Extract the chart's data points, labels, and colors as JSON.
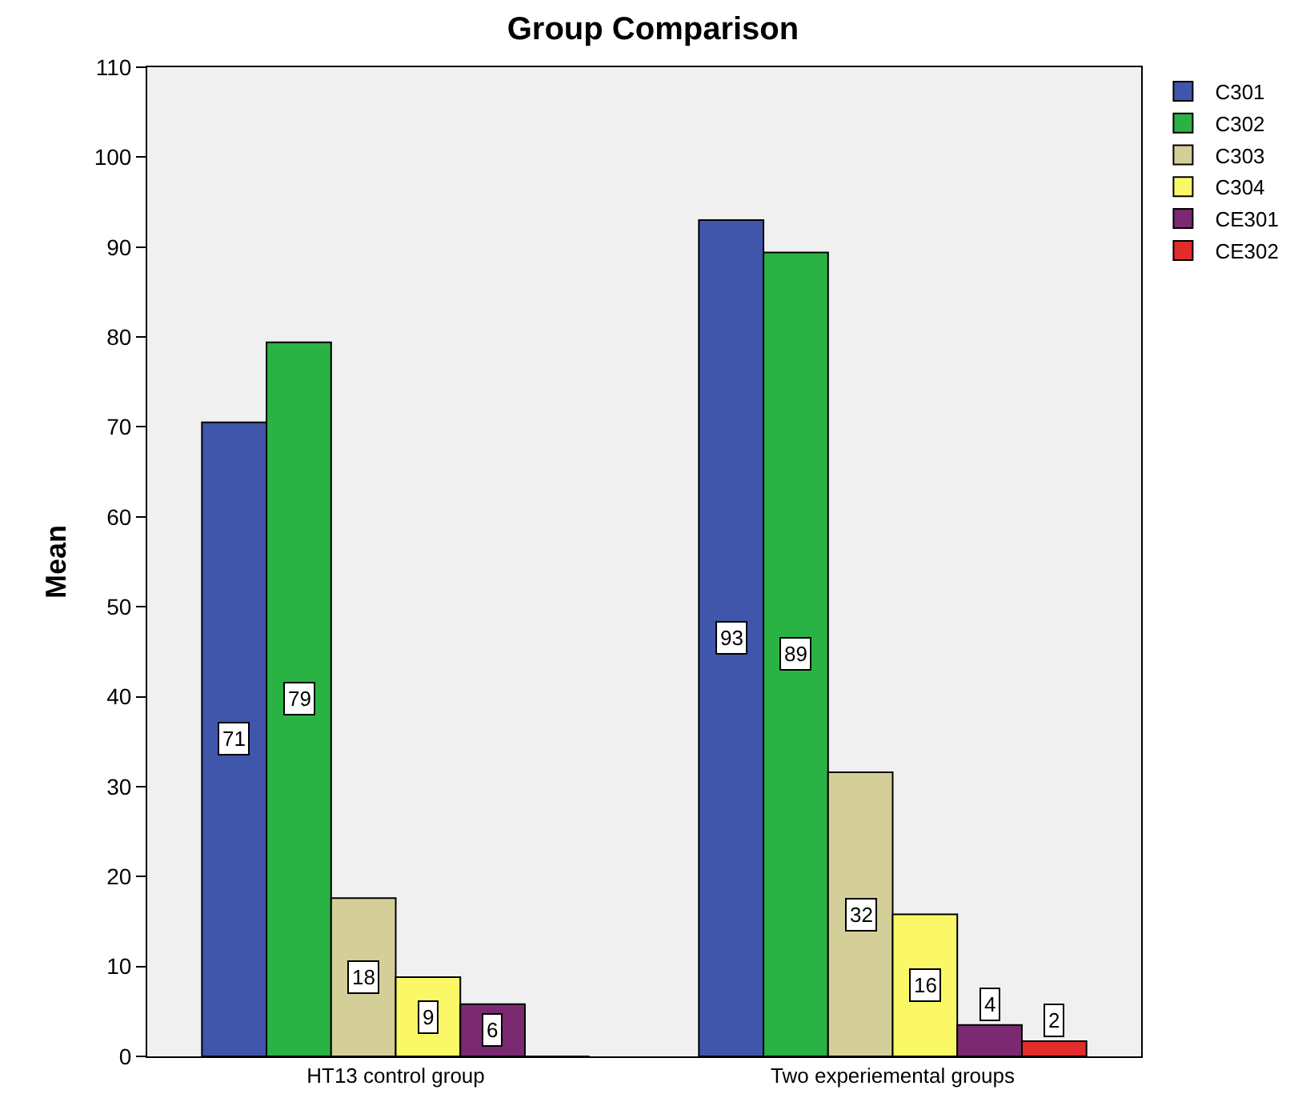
{
  "chart_data": {
    "type": "bar",
    "title": "Group Comparison",
    "ylabel": "Mean",
    "categories": [
      "HT13 control group",
      "Two experiemental groups"
    ],
    "series": [
      {
        "name": "C301",
        "color": "#3f56ab",
        "values": [
          70.5,
          93
        ],
        "value_labels": [
          "71",
          "93"
        ]
      },
      {
        "name": "C302",
        "color": "#2bb245",
        "values": [
          79.4,
          89.4
        ],
        "value_labels": [
          "79",
          "89"
        ]
      },
      {
        "name": "C303",
        "color": "#d4cf98",
        "values": [
          17.6,
          31.6
        ],
        "value_labels": [
          "18",
          "32"
        ]
      },
      {
        "name": "C304",
        "color": "#fbf868",
        "values": [
          8.8,
          15.8
        ],
        "value_labels": [
          "9",
          "16"
        ]
      },
      {
        "name": "CE301",
        "color": "#7b2a72",
        "values": [
          5.8,
          3.5
        ],
        "value_labels": [
          "6",
          "4"
        ]
      },
      {
        "name": "CE302",
        "color": "#e32b2b",
        "values": [
          0,
          1.7
        ],
        "value_labels": [
          null,
          "2"
        ]
      }
    ],
    "ylim": [
      0,
      110
    ],
    "yticks": [
      0,
      10,
      20,
      30,
      40,
      50,
      60,
      70,
      80,
      90,
      100,
      110
    ],
    "grid": false,
    "legend": "top right"
  }
}
